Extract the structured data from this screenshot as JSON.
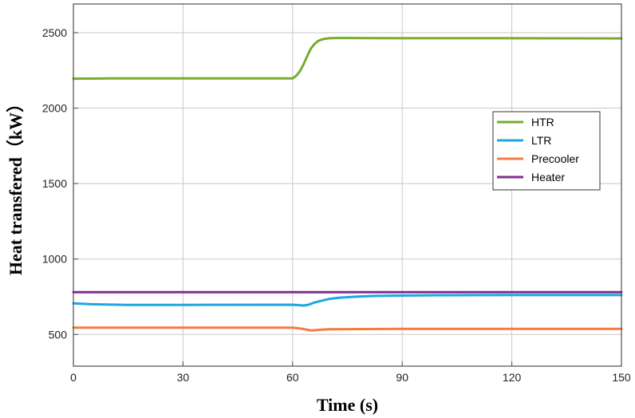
{
  "chart_data": {
    "type": "line",
    "title": "",
    "xlabel": "Time (s)",
    "ylabel": "Heat transfered（kW）",
    "xlim": [
      0,
      150
    ],
    "ylim": [
      290,
      2690
    ],
    "xticks": [
      0,
      30,
      60,
      90,
      120,
      150
    ],
    "yticks": [
      500,
      1000,
      1500,
      2000,
      2500
    ],
    "grid": true,
    "legend_position": "right",
    "series": [
      {
        "name": "HTR",
        "color": "#77ac30",
        "x": [
          0,
          10,
          30,
          60,
          61,
          62,
          63,
          64,
          65,
          66,
          67,
          68,
          69,
          70,
          72,
          75,
          80,
          90,
          120,
          150
        ],
        "y": [
          2195,
          2197,
          2197,
          2197,
          2215,
          2245,
          2290,
          2345,
          2395,
          2425,
          2445,
          2455,
          2460,
          2463,
          2465,
          2465,
          2464,
          2463,
          2463,
          2462
        ]
      },
      {
        "name": "LTR",
        "color": "#1ea7e1",
        "x": [
          0,
          5,
          15,
          30,
          60,
          62,
          63,
          64,
          65,
          66,
          68,
          70,
          73,
          77,
          82,
          90,
          100,
          120,
          150
        ],
        "y": [
          706,
          700,
          696,
          696,
          697,
          694,
          692,
          695,
          703,
          712,
          724,
          735,
          744,
          750,
          755,
          758,
          760,
          761,
          761
        ]
      },
      {
        "name": "Precooler",
        "color": "#f57a42",
        "x": [
          0,
          30,
          60,
          62,
          64,
          65,
          66,
          68,
          70,
          80,
          90,
          120,
          150
        ],
        "y": [
          545,
          545,
          545,
          540,
          531,
          527,
          528,
          532,
          534,
          536,
          537,
          537,
          537
        ]
      },
      {
        "name": "Heater",
        "color": "#7e2f8e",
        "x": [
          0,
          30,
          60,
          90,
          120,
          150
        ],
        "y": [
          780,
          780,
          780,
          780,
          780,
          780
        ]
      }
    ]
  }
}
